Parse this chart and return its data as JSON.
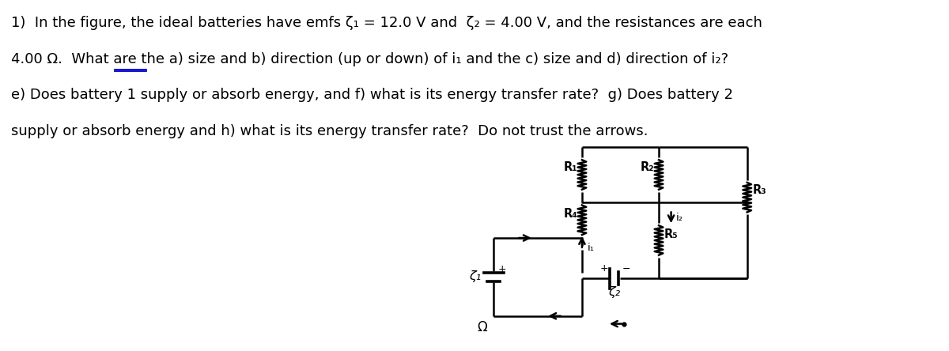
{
  "fig_width": 12.0,
  "fig_height": 4.44,
  "dpi": 100,
  "bg_color": "#ffffff",
  "text_color": "#000000",
  "font_size": 13.0,
  "line1": "1)  In the figure, the ideal batteries have emfs ζ₁ = 12.0 V and  ζ₂ = 4.00 V, and the resistances are each",
  "line2": "4.00 Ω.  What are the a) size and b) direction (up or down) of i₁ and the c) size and d) direction of i₂?",
  "line3": "e) Does battery 1 supply or absorb energy, and f) what is its energy transfer rate?  g) Does battery 2",
  "line4": "supply or absorb energy and h) what is its energy transfer rate?  Do not trust the arrows.",
  "underline_color": "#0000cc",
  "circuit_lw": 1.8
}
